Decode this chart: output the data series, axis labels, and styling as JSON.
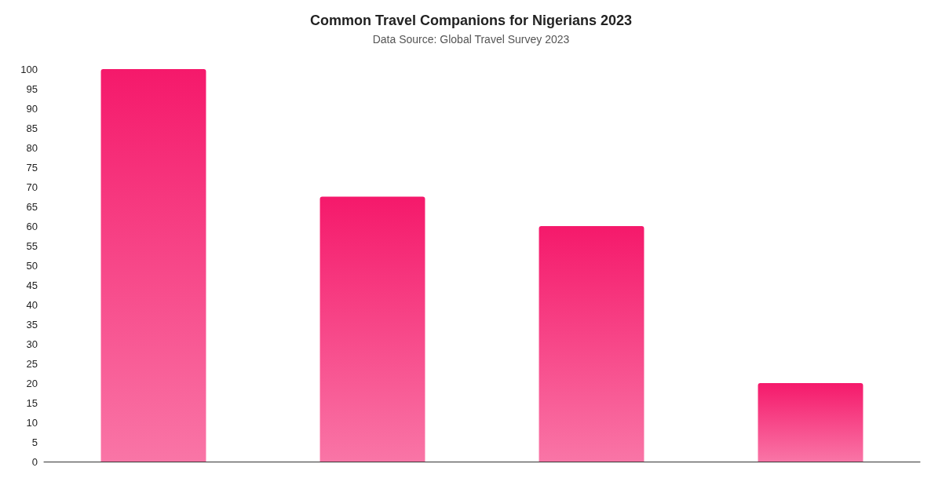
{
  "chart_data": {
    "type": "bar",
    "title": "Common Travel Companions for Nigerians 2023",
    "subtitle": "Data Source: Global Travel Survey 2023",
    "categories": [
      null,
      null,
      null,
      null
    ],
    "values": [
      100,
      67.5,
      60,
      20
    ],
    "color": "#f5196b",
    "ylim": [
      0,
      100
    ],
    "yticks": [
      0,
      5,
      10,
      15,
      20,
      25,
      30,
      35,
      40,
      45,
      50,
      55,
      60,
      65,
      70,
      75,
      80,
      85,
      90,
      95,
      100
    ],
    "grid": false
  }
}
